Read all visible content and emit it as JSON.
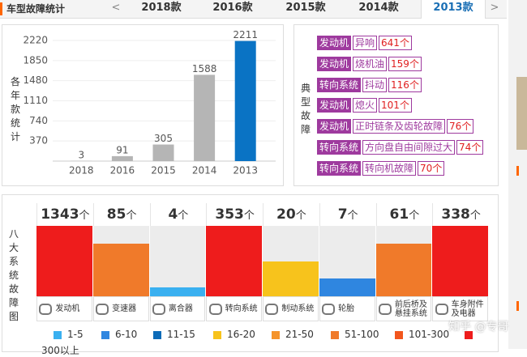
{
  "header": {
    "title": "车型故障统计",
    "prev": "<",
    "next": ">",
    "tabs": [
      "2018款",
      "2016款",
      "2015款",
      "2014款",
      "2013款"
    ],
    "active_tab": 4
  },
  "chart_data": {
    "type": "bar",
    "ylabel": "各年款统计",
    "categories": [
      "2018",
      "2016",
      "2015",
      "2014",
      "2013"
    ],
    "values": [
      3,
      91,
      305,
      1588,
      2211
    ],
    "colors": [
      "#b5b5b5",
      "#b5b5b5",
      "#b5b5b5",
      "#b5b5b5",
      "#0a73c4"
    ],
    "ylim": [
      0,
      2220
    ],
    "yticks": [
      370,
      740,
      1110,
      1480,
      1850,
      2220
    ],
    "grid": true
  },
  "typical_faults": {
    "label": "典型故障",
    "items": [
      {
        "system": "发动机",
        "fault": "异响",
        "count": 641,
        "unit": "个"
      },
      {
        "system": "发动机",
        "fault": "烧机油",
        "count": 159,
        "unit": "个"
      },
      {
        "system": "转向系统",
        "fault": "抖动",
        "count": 116,
        "unit": "个"
      },
      {
        "system": "发动机",
        "fault": "熄火",
        "count": 101,
        "unit": "个"
      },
      {
        "system": "发动机",
        "fault": "正时链条及齿轮故障",
        "count": 76,
        "unit": "个"
      },
      {
        "system": "转向系统",
        "fault": "方向盘自由间隙过大",
        "count": 74,
        "unit": "个"
      },
      {
        "system": "转向系统",
        "fault": "转向机故障",
        "count": 70,
        "unit": "个"
      }
    ]
  },
  "systems": {
    "label": "八大系统故障图",
    "items": [
      {
        "count": 1343,
        "unit": "个",
        "name": "发动机",
        "color": "#ee1c1c"
      },
      {
        "count": 85,
        "unit": "个",
        "name": "变速器",
        "color": "#f07a2a"
      },
      {
        "count": 4,
        "unit": "个",
        "name": "离合器",
        "color": "#3ab0f0"
      },
      {
        "count": 353,
        "unit": "个",
        "name": "转向系统",
        "color": "#ee1c1c"
      },
      {
        "count": 20,
        "unit": "个",
        "name": "制动系统",
        "color": "#f7c31c"
      },
      {
        "count": 7,
        "unit": "个",
        "name": "轮胎",
        "color": "#2f86e0"
      },
      {
        "count": 61,
        "unit": "个",
        "name": "前后桥及悬挂系统",
        "color": "#f07a2a"
      },
      {
        "count": 338,
        "unit": "个",
        "name": "车身附件及电器",
        "color": "#ee1c1c"
      }
    ]
  },
  "legend": [
    {
      "label": "1-5",
      "color": "#3ab0f0"
    },
    {
      "label": "6-10",
      "color": "#2f86e0"
    },
    {
      "label": "11-15",
      "color": "#0d6bb8"
    },
    {
      "label": "16-20",
      "color": "#f7c31c"
    },
    {
      "label": "21-50",
      "color": "#f5932a"
    },
    {
      "label": "51-100",
      "color": "#f07a2a"
    },
    {
      "label": "101-300",
      "color": "#f2561d"
    },
    {
      "label": "300以上",
      "color": "#ee1c1c"
    }
  ],
  "watermark": "知乎 @专哥"
}
